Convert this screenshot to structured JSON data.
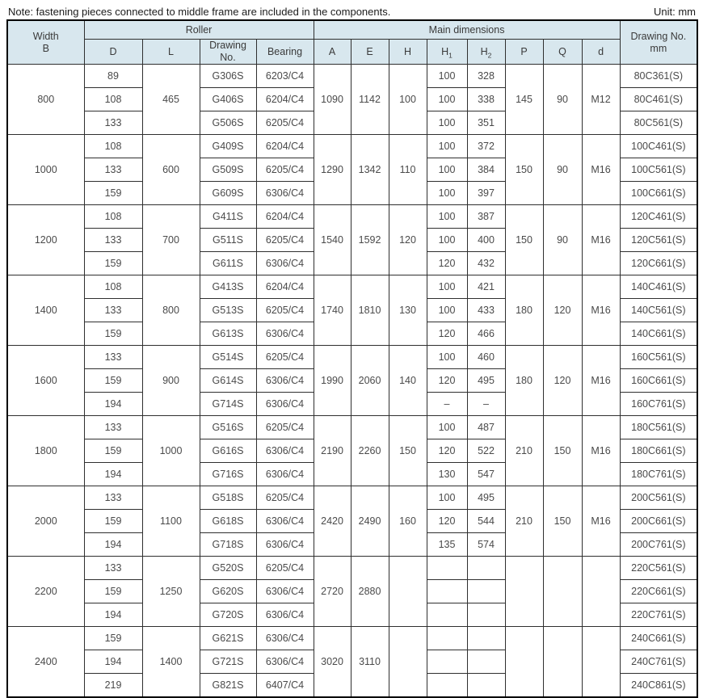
{
  "note": "Note: fastening pieces connected to middle frame are included in the components.",
  "unit": "Unit: mm",
  "colors": {
    "header_bg": "#d8e7ee",
    "border_inner": "#2f2f2f",
    "border_outer": "#000000",
    "cell_text": "#4a4a4a"
  },
  "table": {
    "headers": {
      "width_b": "Width\nB",
      "roller": "Roller",
      "main_dimensions": "Main dimensions",
      "drawing_no_mm": "Drawing No.\nmm"
    },
    "sub_headers": {
      "d": "D",
      "l": "L",
      "drawing_no": "Drawing\nNo.",
      "bearing": "Bearing",
      "a": "A",
      "e": "E",
      "h": "H",
      "h1_base": "H",
      "h1_sub": "1",
      "h2_base": "H",
      "h2_sub": "2",
      "p": "P",
      "q": "Q",
      "d_small": "d"
    },
    "groups": [
      {
        "width_b": "800",
        "l": "465",
        "a": "1090",
        "e": "1142",
        "h": "100",
        "p": "145",
        "q": "90",
        "d_thread": "M12",
        "rows": [
          {
            "d": "89",
            "drawing": "G306S",
            "bearing": "6203/C4",
            "h1": "100",
            "h2": "328",
            "dwg": "80C361(S)"
          },
          {
            "d": "108",
            "drawing": "G406S",
            "bearing": "6204/C4",
            "h1": "100",
            "h2": "338",
            "dwg": "80C461(S)"
          },
          {
            "d": "133",
            "drawing": "G506S",
            "bearing": "6205/C4",
            "h1": "100",
            "h2": "351",
            "dwg": "80C561(S)"
          }
        ]
      },
      {
        "width_b": "1000",
        "l": "600",
        "a": "1290",
        "e": "1342",
        "h": "110",
        "p": "150",
        "q": "90",
        "d_thread": "M16",
        "rows": [
          {
            "d": "108",
            "drawing": "G409S",
            "bearing": "6204/C4",
            "h1": "100",
            "h2": "372",
            "dwg": "100C461(S)"
          },
          {
            "d": "133",
            "drawing": "G509S",
            "bearing": "6205/C4",
            "h1": "100",
            "h2": "384",
            "dwg": "100C561(S)"
          },
          {
            "d": "159",
            "drawing": "G609S",
            "bearing": "6306/C4",
            "h1": "100",
            "h2": "397",
            "dwg": "100C661(S)"
          }
        ]
      },
      {
        "width_b": "1200",
        "l": "700",
        "a": "1540",
        "e": "1592",
        "h": "120",
        "p": "150",
        "q": "90",
        "d_thread": "M16",
        "rows": [
          {
            "d": "108",
            "drawing": "G411S",
            "bearing": "6204/C4",
            "h1": "100",
            "h2": "387",
            "dwg": "120C461(S)"
          },
          {
            "d": "133",
            "drawing": "G511S",
            "bearing": "6205/C4",
            "h1": "100",
            "h2": "400",
            "dwg": "120C561(S)"
          },
          {
            "d": "159",
            "drawing": "G611S",
            "bearing": "6306/C4",
            "h1": "120",
            "h2": "432",
            "dwg": "120C661(S)"
          }
        ]
      },
      {
        "width_b": "1400",
        "l": "800",
        "a": "1740",
        "e": "1810",
        "h": "130",
        "p": "180",
        "q": "120",
        "d_thread": "M16",
        "rows": [
          {
            "d": "108",
            "drawing": "G413S",
            "bearing": "6204/C4",
            "h1": "100",
            "h2": "421",
            "dwg": "140C461(S)"
          },
          {
            "d": "133",
            "drawing": "G513S",
            "bearing": "6205/C4",
            "h1": "100",
            "h2": "433",
            "dwg": "140C561(S)"
          },
          {
            "d": "159",
            "drawing": "G613S",
            "bearing": "6306/C4",
            "h1": "120",
            "h2": "466",
            "dwg": "140C661(S)"
          }
        ]
      },
      {
        "width_b": "1600",
        "l": "900",
        "a": "1990",
        "e": "2060",
        "h": "140",
        "p": "180",
        "q": "120",
        "d_thread": "M16",
        "rows": [
          {
            "d": "133",
            "drawing": "G514S",
            "bearing": "6205/C4",
            "h1": "100",
            "h2": "460",
            "dwg": "160C561(S)"
          },
          {
            "d": "159",
            "drawing": "G614S",
            "bearing": "6306/C4",
            "h1": "120",
            "h2": "495",
            "dwg": "160C661(S)"
          },
          {
            "d": "194",
            "drawing": "G714S",
            "bearing": "6306/C4",
            "h1": "–",
            "h2": "–",
            "dwg": "160C761(S)"
          }
        ]
      },
      {
        "width_b": "1800",
        "l": "1000",
        "a": "2190",
        "e": "2260",
        "h": "150",
        "p": "210",
        "q": "150",
        "d_thread": "M16",
        "rows": [
          {
            "d": "133",
            "drawing": "G516S",
            "bearing": "6205/C4",
            "h1": "100",
            "h2": "487",
            "dwg": "180C561(S)"
          },
          {
            "d": "159",
            "drawing": "G616S",
            "bearing": "6306/C4",
            "h1": "120",
            "h2": "522",
            "dwg": "180C661(S)"
          },
          {
            "d": "194",
            "drawing": "G716S",
            "bearing": "6306/C4",
            "h1": "130",
            "h2": "547",
            "dwg": "180C761(S)"
          }
        ]
      },
      {
        "width_b": "2000",
        "l": "1100",
        "a": "2420",
        "e": "2490",
        "h": "160",
        "p": "210",
        "q": "150",
        "d_thread": "M16",
        "rows": [
          {
            "d": "133",
            "drawing": "G518S",
            "bearing": "6205/C4",
            "h1": "100",
            "h2": "495",
            "dwg": "200C561(S)"
          },
          {
            "d": "159",
            "drawing": "G618S",
            "bearing": "6306/C4",
            "h1": "120",
            "h2": "544",
            "dwg": "200C661(S)"
          },
          {
            "d": "194",
            "drawing": "G718S",
            "bearing": "6306/C4",
            "h1": "135",
            "h2": "574",
            "dwg": "200C761(S)"
          }
        ]
      },
      {
        "width_b": "2200",
        "l": "1250",
        "a": "2720",
        "e": "2880",
        "h": "",
        "p": "",
        "q": "",
        "d_thread": "",
        "rows": [
          {
            "d": "133",
            "drawing": "G520S",
            "bearing": "6205/C4",
            "h1": "",
            "h2": "",
            "dwg": "220C561(S)"
          },
          {
            "d": "159",
            "drawing": "G620S",
            "bearing": "6306/C4",
            "h1": "",
            "h2": "",
            "dwg": "220C661(S)"
          },
          {
            "d": "194",
            "drawing": "G720S",
            "bearing": "6306/C4",
            "h1": "",
            "h2": "",
            "dwg": "220C761(S)"
          }
        ]
      },
      {
        "width_b": "2400",
        "l": "1400",
        "a": "3020",
        "e": "3110",
        "h": "",
        "p": "",
        "q": "",
        "d_thread": "",
        "rows": [
          {
            "d": "159",
            "drawing": "G621S",
            "bearing": "6306/C4",
            "h1": "",
            "h2": "",
            "dwg": "240C661(S)"
          },
          {
            "d": "194",
            "drawing": "G721S",
            "bearing": "6306/C4",
            "h1": "",
            "h2": "",
            "dwg": "240C761(S)"
          },
          {
            "d": "219",
            "drawing": "G821S",
            "bearing": "6407/C4",
            "h1": "",
            "h2": "",
            "dwg": "240C861(S)"
          }
        ]
      }
    ]
  }
}
